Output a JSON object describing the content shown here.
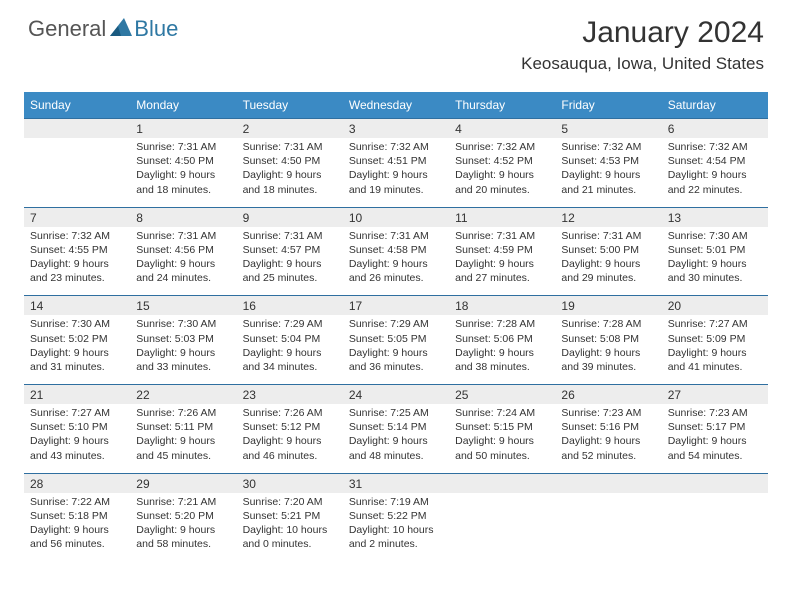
{
  "logo": {
    "text1": "General",
    "text2": "Blue"
  },
  "title": "January 2024",
  "location": "Keosauqua, Iowa, United States",
  "colors": {
    "header_bg": "#3b8ac4",
    "header_text": "#ffffff",
    "numrow_bg": "#ededed",
    "row_border": "#2f6fa0",
    "body_text": "#333333",
    "logo_accent": "#2f78a3"
  },
  "day_names": [
    "Sunday",
    "Monday",
    "Tuesday",
    "Wednesday",
    "Thursday",
    "Friday",
    "Saturday"
  ],
  "weeks": [
    {
      "nums": [
        "",
        "1",
        "2",
        "3",
        "4",
        "5",
        "6"
      ],
      "cells": [
        null,
        {
          "sunrise": "7:31 AM",
          "sunset": "4:50 PM",
          "daylight": "9 hours and 18 minutes."
        },
        {
          "sunrise": "7:31 AM",
          "sunset": "4:50 PM",
          "daylight": "9 hours and 18 minutes."
        },
        {
          "sunrise": "7:32 AM",
          "sunset": "4:51 PM",
          "daylight": "9 hours and 19 minutes."
        },
        {
          "sunrise": "7:32 AM",
          "sunset": "4:52 PM",
          "daylight": "9 hours and 20 minutes."
        },
        {
          "sunrise": "7:32 AM",
          "sunset": "4:53 PM",
          "daylight": "9 hours and 21 minutes."
        },
        {
          "sunrise": "7:32 AM",
          "sunset": "4:54 PM",
          "daylight": "9 hours and 22 minutes."
        }
      ]
    },
    {
      "nums": [
        "7",
        "8",
        "9",
        "10",
        "11",
        "12",
        "13"
      ],
      "cells": [
        {
          "sunrise": "7:32 AM",
          "sunset": "4:55 PM",
          "daylight": "9 hours and 23 minutes."
        },
        {
          "sunrise": "7:31 AM",
          "sunset": "4:56 PM",
          "daylight": "9 hours and 24 minutes."
        },
        {
          "sunrise": "7:31 AM",
          "sunset": "4:57 PM",
          "daylight": "9 hours and 25 minutes."
        },
        {
          "sunrise": "7:31 AM",
          "sunset": "4:58 PM",
          "daylight": "9 hours and 26 minutes."
        },
        {
          "sunrise": "7:31 AM",
          "sunset": "4:59 PM",
          "daylight": "9 hours and 27 minutes."
        },
        {
          "sunrise": "7:31 AM",
          "sunset": "5:00 PM",
          "daylight": "9 hours and 29 minutes."
        },
        {
          "sunrise": "7:30 AM",
          "sunset": "5:01 PM",
          "daylight": "9 hours and 30 minutes."
        }
      ]
    },
    {
      "nums": [
        "14",
        "15",
        "16",
        "17",
        "18",
        "19",
        "20"
      ],
      "cells": [
        {
          "sunrise": "7:30 AM",
          "sunset": "5:02 PM",
          "daylight": "9 hours and 31 minutes."
        },
        {
          "sunrise": "7:30 AM",
          "sunset": "5:03 PM",
          "daylight": "9 hours and 33 minutes."
        },
        {
          "sunrise": "7:29 AM",
          "sunset": "5:04 PM",
          "daylight": "9 hours and 34 minutes."
        },
        {
          "sunrise": "7:29 AM",
          "sunset": "5:05 PM",
          "daylight": "9 hours and 36 minutes."
        },
        {
          "sunrise": "7:28 AM",
          "sunset": "5:06 PM",
          "daylight": "9 hours and 38 minutes."
        },
        {
          "sunrise": "7:28 AM",
          "sunset": "5:08 PM",
          "daylight": "9 hours and 39 minutes."
        },
        {
          "sunrise": "7:27 AM",
          "sunset": "5:09 PM",
          "daylight": "9 hours and 41 minutes."
        }
      ]
    },
    {
      "nums": [
        "21",
        "22",
        "23",
        "24",
        "25",
        "26",
        "27"
      ],
      "cells": [
        {
          "sunrise": "7:27 AM",
          "sunset": "5:10 PM",
          "daylight": "9 hours and 43 minutes."
        },
        {
          "sunrise": "7:26 AM",
          "sunset": "5:11 PM",
          "daylight": "9 hours and 45 minutes."
        },
        {
          "sunrise": "7:26 AM",
          "sunset": "5:12 PM",
          "daylight": "9 hours and 46 minutes."
        },
        {
          "sunrise": "7:25 AM",
          "sunset": "5:14 PM",
          "daylight": "9 hours and 48 minutes."
        },
        {
          "sunrise": "7:24 AM",
          "sunset": "5:15 PM",
          "daylight": "9 hours and 50 minutes."
        },
        {
          "sunrise": "7:23 AM",
          "sunset": "5:16 PM",
          "daylight": "9 hours and 52 minutes."
        },
        {
          "sunrise": "7:23 AM",
          "sunset": "5:17 PM",
          "daylight": "9 hours and 54 minutes."
        }
      ]
    },
    {
      "nums": [
        "28",
        "29",
        "30",
        "31",
        "",
        "",
        ""
      ],
      "cells": [
        {
          "sunrise": "7:22 AM",
          "sunset": "5:18 PM",
          "daylight": "9 hours and 56 minutes."
        },
        {
          "sunrise": "7:21 AM",
          "sunset": "5:20 PM",
          "daylight": "9 hours and 58 minutes."
        },
        {
          "sunrise": "7:20 AM",
          "sunset": "5:21 PM",
          "daylight": "10 hours and 0 minutes."
        },
        {
          "sunrise": "7:19 AM",
          "sunset": "5:22 PM",
          "daylight": "10 hours and 2 minutes."
        },
        null,
        null,
        null
      ]
    }
  ],
  "labels": {
    "sunrise": "Sunrise: ",
    "sunset": "Sunset: ",
    "daylight": "Daylight: "
  }
}
